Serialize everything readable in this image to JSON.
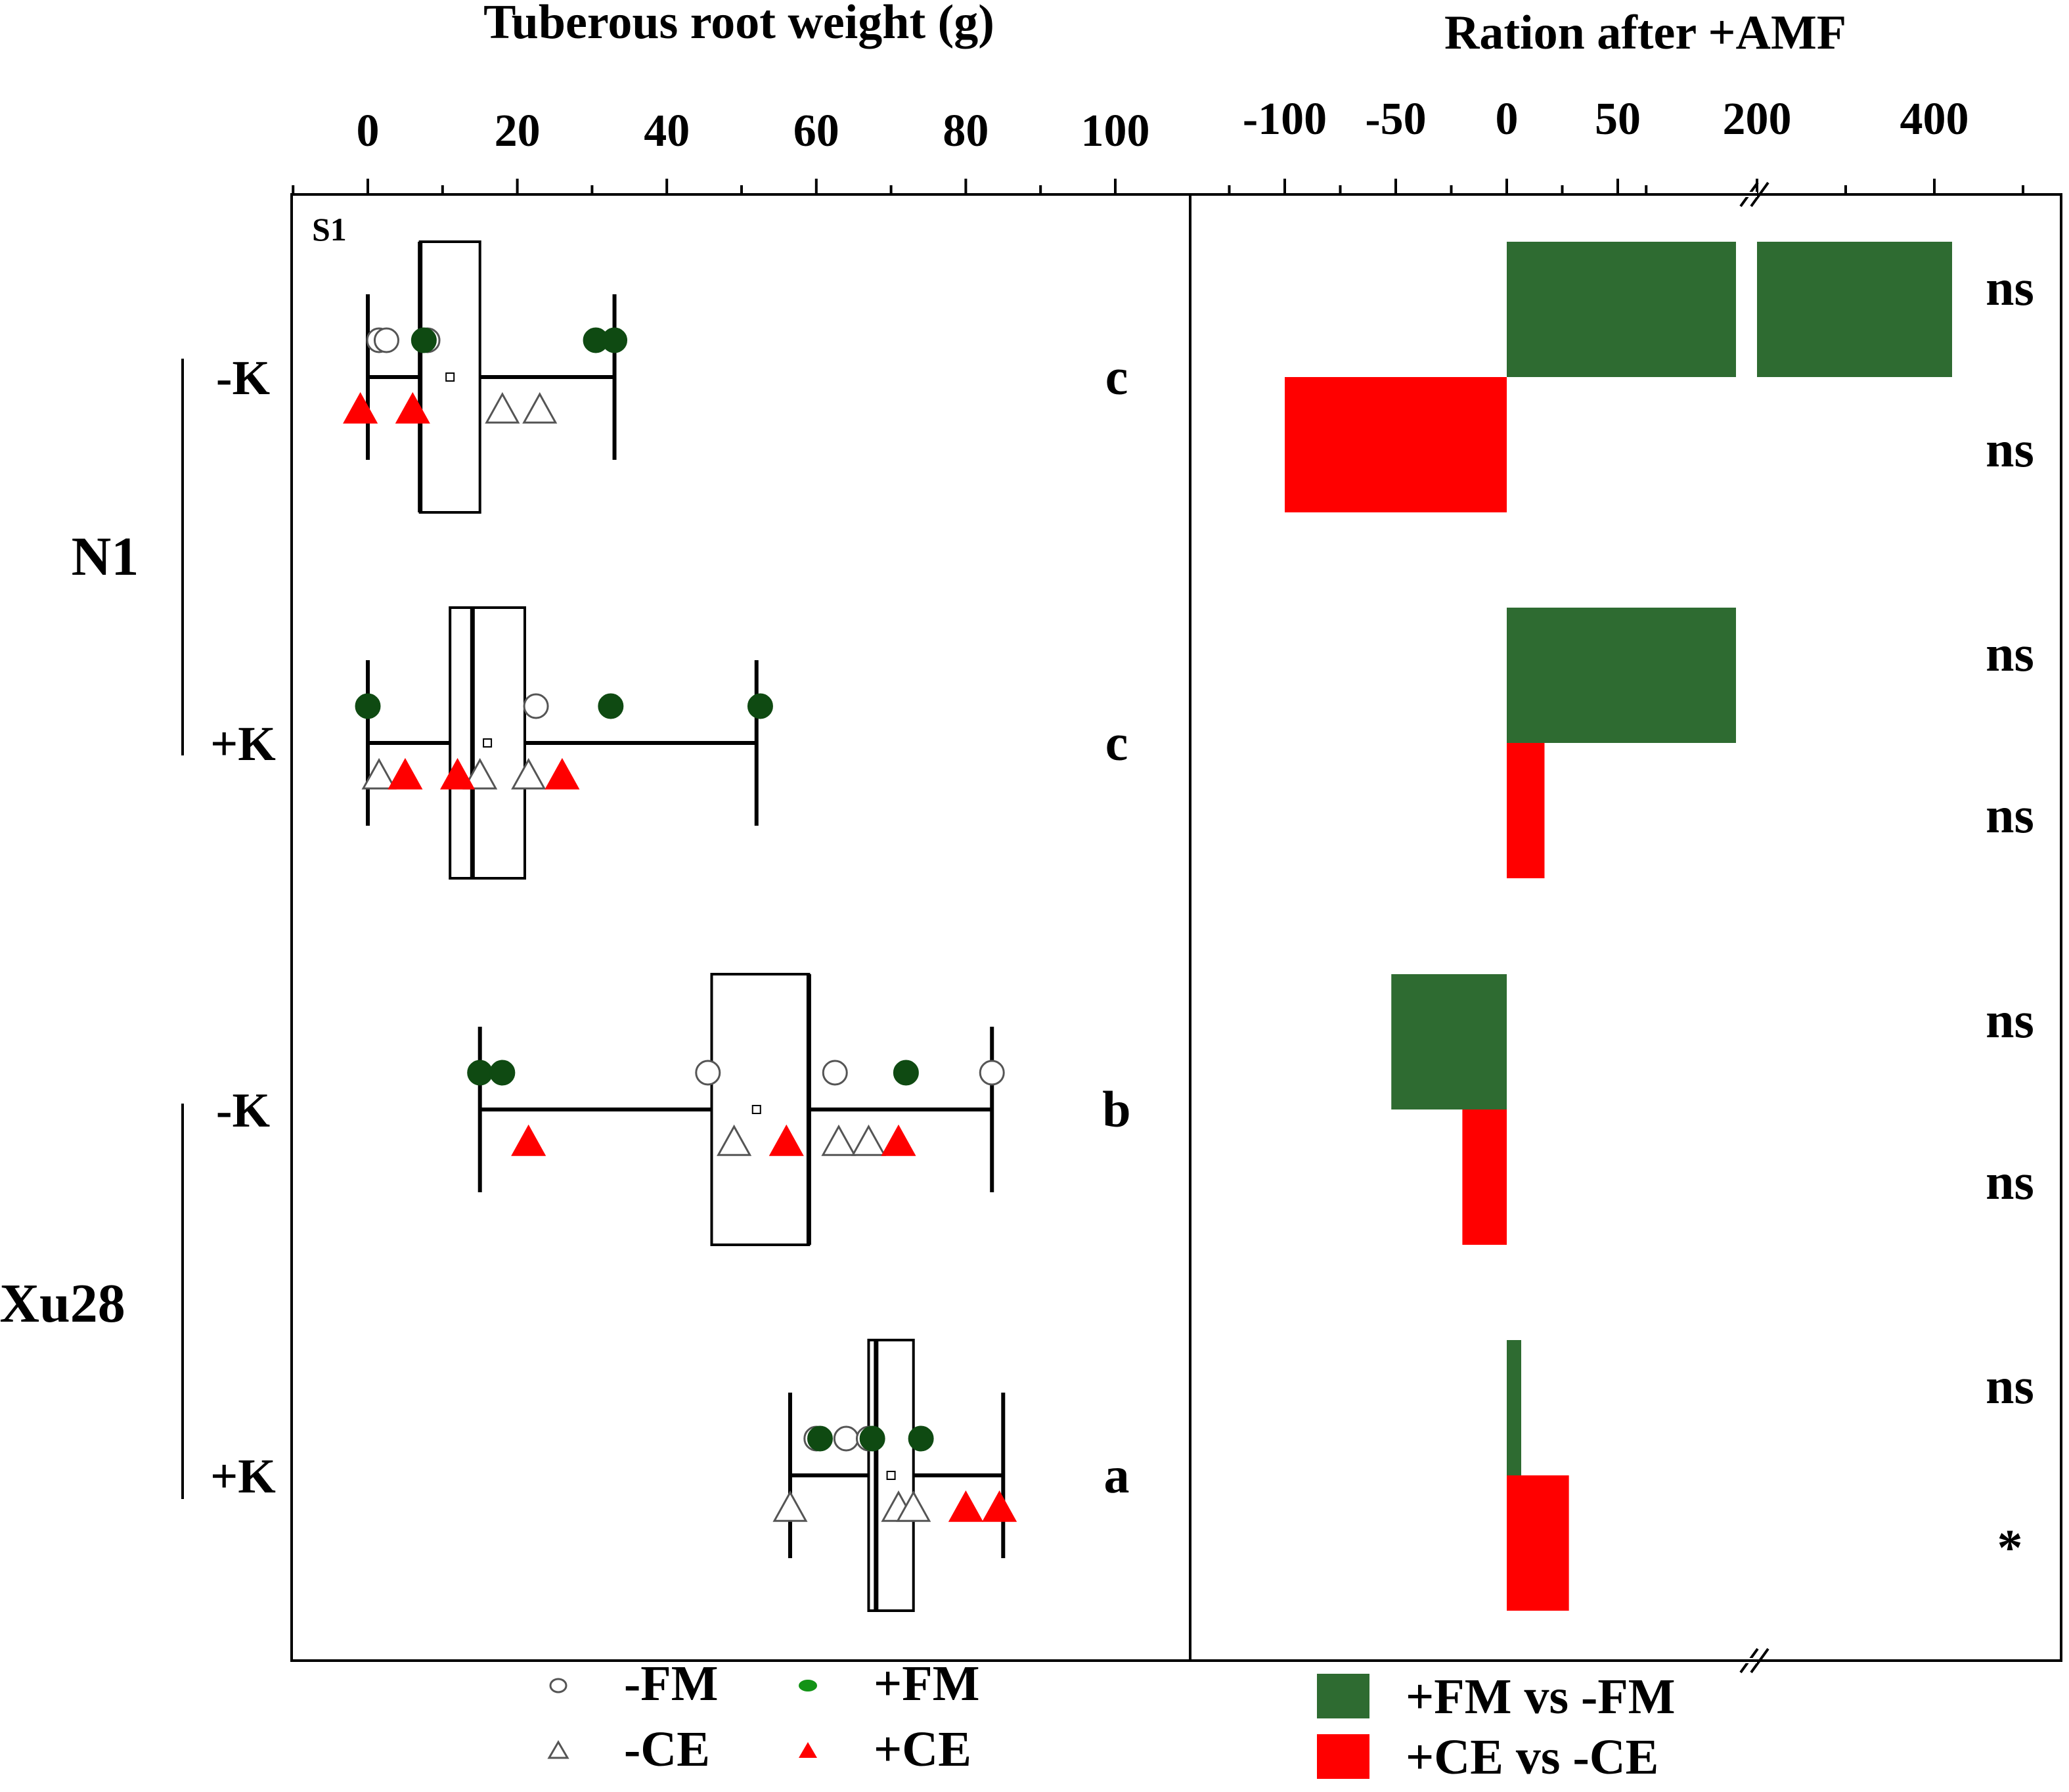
{
  "panel_label": "S1",
  "cultivars": [
    {
      "name": "N1"
    },
    {
      "name": "Xu28"
    }
  ],
  "colors": {
    "fm_green": "#2e6b31",
    "point_green": "#0f4a12",
    "ce_red": "#ff0000",
    "axis": "#000000"
  },
  "legend": {
    "left": [
      {
        "label": "-FM",
        "marker": "open-circle"
      },
      {
        "label": "+FM",
        "marker": "filled-green-circle"
      },
      {
        "label": "-CE",
        "marker": "open-triangle"
      },
      {
        "label": "+CE",
        "marker": "filled-red-triangle"
      }
    ],
    "right": [
      {
        "label": "+FM vs -FM",
        "color": "#2e6b31"
      },
      {
        "label": "+CE vs -CE",
        "color": "#ff0000"
      }
    ]
  },
  "chart_data": [
    {
      "type": "box",
      "title": "Tuberous root weight (g)",
      "xlim": [
        -10,
        108
      ],
      "xticks": [
        0,
        20,
        40,
        60,
        80,
        100
      ],
      "xtick_labels": [
        "0",
        "20",
        "40",
        "60",
        "80",
        "100"
      ],
      "groups": [
        {
          "cultivar": "N1",
          "k_label": "-K",
          "letter": "c",
          "box": {
            "q1": 7,
            "q3": 15,
            "median": 7,
            "mean": 11,
            "whisker_low": 0,
            "whisker_high": 33
          },
          "minus_FM": [
            1.5,
            2.5,
            8
          ],
          "plus_FM": [
            7.5,
            30.5,
            33
          ],
          "minus_CE": [
            18,
            23
          ],
          "plus_CE": [
            -1,
            6
          ]
        },
        {
          "cultivar": "N1",
          "k_label": "+K",
          "letter": "c",
          "box": {
            "q1": 11,
            "q3": 21,
            "median": 14,
            "mean": 16,
            "whisker_low": 0,
            "whisker_high": 52
          },
          "minus_FM": [
            22.5
          ],
          "plus_FM": [
            0,
            32.5,
            52.5
          ],
          "minus_CE": [
            1.5,
            15,
            21.5
          ],
          "plus_CE": [
            5,
            12,
            26
          ]
        },
        {
          "cultivar": "Xu28",
          "k_label": "-K",
          "letter": "b",
          "box": {
            "q1": 46,
            "q3": 59,
            "median": 59,
            "mean": 52,
            "whisker_low": 15,
            "whisker_high": 83.5
          },
          "minus_FM": [
            45.5,
            62.5,
            83.5
          ],
          "plus_FM": [
            15,
            18,
            72
          ],
          "minus_CE": [
            49,
            63,
            67
          ],
          "plus_CE": [
            21.5,
            56,
            71
          ]
        },
        {
          "cultivar": "Xu28",
          "k_label": "+K",
          "letter": "a",
          "box": {
            "q1": 67,
            "q3": 73,
            "median": 68,
            "mean": 70,
            "whisker_low": 56.5,
            "whisker_high": 85
          },
          "minus_FM": [
            60,
            64,
            67
          ],
          "plus_FM": [
            60.5,
            67.5,
            74
          ],
          "minus_CE": [
            56.5,
            71,
            73
          ],
          "plus_CE": [
            80,
            84.5
          ]
        }
      ]
    },
    {
      "type": "bar",
      "orientation": "horizontal",
      "title": "Ration after +AMF",
      "xaxis": "broken",
      "xticks": [
        -100,
        -50,
        0,
        50,
        200,
        400
      ],
      "xtick_labels": [
        "-100",
        "-50",
        "0",
        "50",
        "200",
        "400"
      ],
      "axis_break_between": [
        50,
        200
      ],
      "series": [
        {
          "name": "+FM vs -FM",
          "color": "#2e6b31",
          "values": [
            420,
            180,
            -52,
            6
          ]
        },
        {
          "name": "+CE vs -CE",
          "color": "#ff0000",
          "values": [
            -100,
            17,
            -20,
            28
          ]
        }
      ],
      "significance": [
        [
          "ns",
          "ns"
        ],
        [
          "ns",
          "ns"
        ],
        [
          "ns",
          "ns"
        ],
        [
          "ns",
          "*"
        ]
      ]
    }
  ]
}
